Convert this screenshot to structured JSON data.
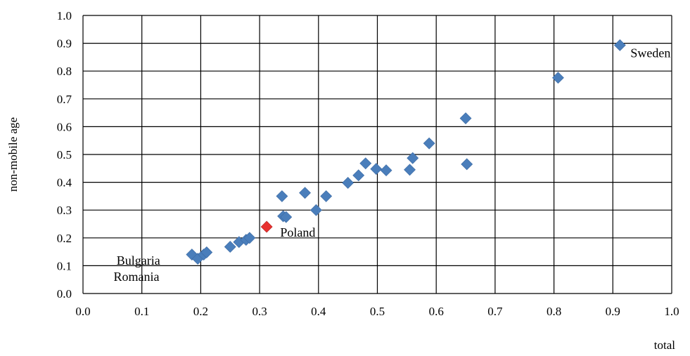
{
  "chart_data": {
    "type": "scatter",
    "title": "",
    "xlabel": "total",
    "ylabel": "non-mobile age",
    "xlim": [
      0,
      1
    ],
    "ylim": [
      0,
      1
    ],
    "x_ticks": [
      "0.0",
      "0.1",
      "0.2",
      "0.3",
      "0.4",
      "0.5",
      "0.6",
      "0.7",
      "0.8",
      "0.9",
      "1.0"
    ],
    "y_ticks": [
      "0.0",
      "0.1",
      "0.2",
      "0.3",
      "0.4",
      "0.5",
      "0.6",
      "0.7",
      "0.8",
      "0.9",
      "1.0"
    ],
    "grid": true,
    "marker": "diamond",
    "colors": {
      "default": "#4a7ebb",
      "highlight": "#e8312f",
      "grid": "#000000"
    },
    "points": [
      {
        "x": 0.185,
        "y": 0.14
      },
      {
        "x": 0.195,
        "y": 0.125
      },
      {
        "x": 0.205,
        "y": 0.14
      },
      {
        "x": 0.21,
        "y": 0.148
      },
      {
        "x": 0.25,
        "y": 0.168
      },
      {
        "x": 0.265,
        "y": 0.185
      },
      {
        "x": 0.277,
        "y": 0.193
      },
      {
        "x": 0.283,
        "y": 0.2
      },
      {
        "x": 0.312,
        "y": 0.24,
        "highlight": true
      },
      {
        "x": 0.338,
        "y": 0.35
      },
      {
        "x": 0.34,
        "y": 0.278
      },
      {
        "x": 0.345,
        "y": 0.275
      },
      {
        "x": 0.377,
        "y": 0.362
      },
      {
        "x": 0.396,
        "y": 0.3
      },
      {
        "x": 0.413,
        "y": 0.35
      },
      {
        "x": 0.45,
        "y": 0.398
      },
      {
        "x": 0.468,
        "y": 0.425
      },
      {
        "x": 0.48,
        "y": 0.468
      },
      {
        "x": 0.498,
        "y": 0.448
      },
      {
        "x": 0.515,
        "y": 0.443
      },
      {
        "x": 0.555,
        "y": 0.445
      },
      {
        "x": 0.56,
        "y": 0.487
      },
      {
        "x": 0.588,
        "y": 0.54
      },
      {
        "x": 0.65,
        "y": 0.63
      },
      {
        "x": 0.652,
        "y": 0.465
      },
      {
        "x": 0.807,
        "y": 0.776
      },
      {
        "x": 0.912,
        "y": 0.893
      }
    ],
    "annotations": [
      {
        "text": "Sweden",
        "x": 0.93,
        "y": 0.85
      },
      {
        "text": "Poland",
        "x": 0.335,
        "y": 0.205
      },
      {
        "text": "Bulgaria",
        "x": 0.057,
        "y": 0.103
      },
      {
        "text": "Romania",
        "x": 0.052,
        "y": 0.045
      }
    ]
  }
}
